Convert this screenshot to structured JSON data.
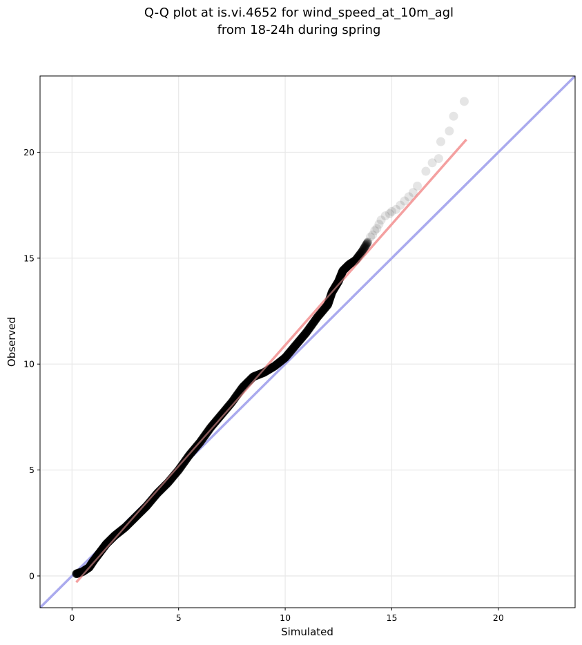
{
  "chart_data": {
    "type": "scatter",
    "title": [
      "Q-Q plot at is.vi.4652 for wind_speed_at_10m_agl",
      "from 18-24h during spring"
    ],
    "xlabel": "Simulated",
    "ylabel": "Observed",
    "xlim": [
      -1.5,
      23.6
    ],
    "ylim": [
      -1.5,
      23.6
    ],
    "xticks": [
      0,
      5,
      10,
      15,
      20
    ],
    "yticks": [
      0,
      5,
      10,
      15,
      20
    ],
    "grid": true,
    "colors": {
      "points": "#000000",
      "identity_line": "#aaaaee",
      "fit_line": "#f4a0a0",
      "grid": "#e8e8e8"
    },
    "identity_line": {
      "x": [
        -1.5,
        23.6
      ],
      "y": [
        -1.5,
        23.6
      ]
    },
    "fit_line": {
      "x": [
        0.2,
        18.5
      ],
      "y": [
        -0.3,
        20.6
      ]
    },
    "quantile_curve": {
      "x": [
        0.2,
        0.5,
        0.8,
        1.0,
        1.3,
        1.6,
        2.0,
        2.5,
        3.0,
        3.5,
        4.0,
        4.5,
        5.0,
        5.5,
        6.0,
        6.5,
        7.0,
        7.5,
        8.0,
        8.5,
        9.0,
        9.5,
        10.0,
        10.5,
        11.0,
        11.5,
        12.0,
        12.2,
        12.5,
        12.7,
        13.0,
        13.3,
        13.6,
        13.9
      ],
      "y": [
        0.1,
        0.2,
        0.4,
        0.7,
        1.1,
        1.5,
        1.9,
        2.3,
        2.8,
        3.3,
        3.9,
        4.4,
        5.0,
        5.7,
        6.3,
        7.0,
        7.6,
        8.2,
        8.9,
        9.4,
        9.6,
        9.9,
        10.3,
        10.9,
        11.5,
        12.2,
        12.8,
        13.4,
        13.9,
        14.4,
        14.7,
        14.9,
        15.3,
        15.8
      ]
    },
    "tail_points": {
      "x": [
        14.0,
        14.1,
        14.2,
        14.3,
        14.4,
        14.5,
        14.7,
        14.9,
        15.0,
        15.2,
        15.4,
        15.6,
        15.8,
        16.0,
        16.2,
        16.6,
        16.9,
        17.2,
        17.3,
        17.7,
        17.9,
        18.4
      ],
      "y": [
        16.0,
        16.1,
        16.3,
        16.4,
        16.6,
        16.8,
        17.0,
        17.1,
        17.2,
        17.3,
        17.5,
        17.7,
        17.9,
        18.1,
        18.4,
        19.1,
        19.5,
        19.7,
        20.5,
        21.0,
        21.7,
        22.4
      ]
    }
  }
}
